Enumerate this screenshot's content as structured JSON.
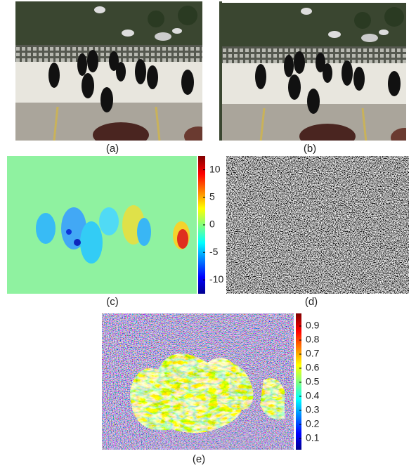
{
  "panels": [
    {
      "label": "(a)"
    },
    {
      "label": "(b)"
    },
    {
      "label": "(c)"
    },
    {
      "label": "(d)"
    },
    {
      "label": "(e)"
    }
  ],
  "colorbars": [
    {
      "lim": [
        -12.5,
        12.5
      ],
      "ticks": [
        10,
        5,
        0,
        -5,
        -10
      ]
    },
    {
      "lim": [
        0.02,
        0.99
      ],
      "ticks": [
        0.9,
        0.8,
        0.7,
        0.6,
        0.5,
        0.4,
        0.3,
        0.2,
        0.1
      ]
    }
  ]
}
